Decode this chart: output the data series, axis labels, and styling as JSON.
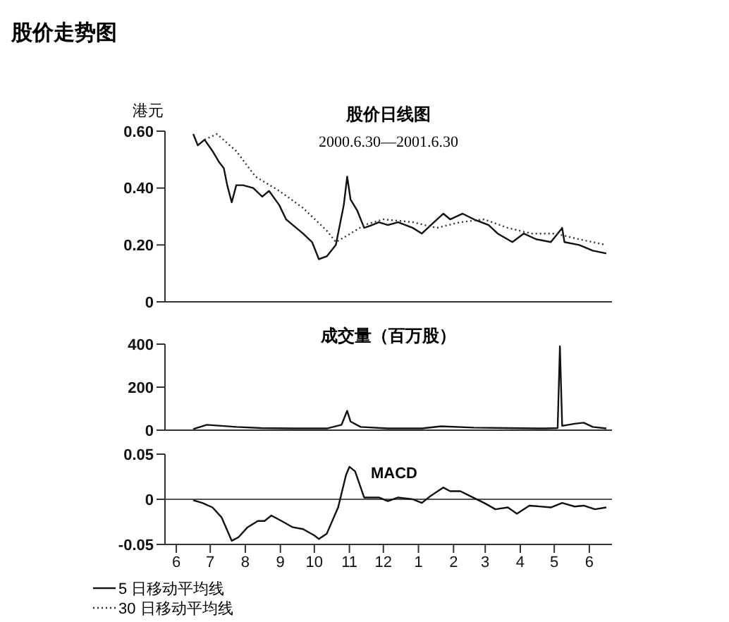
{
  "chart_data": [
    {
      "type": "line",
      "title": "股价日线图",
      "subtitle": "2000.6.30—2001.6.30",
      "ylabel": "港元",
      "annotations": [
        "股价走势图"
      ],
      "xlim": [
        "2000-06-05",
        "2001-07-05"
      ],
      "ylim": [
        0,
        0.6
      ],
      "yticks": [
        {
          "value": 0,
          "label": "0"
        },
        {
          "value": 0.2,
          "label": "0.20"
        },
        {
          "value": 0.4,
          "label": "0.40"
        },
        {
          "value": 0.6,
          "label": "0.60"
        }
      ],
      "tick_labels": "y",
      "legend": "bottom left",
      "series": [
        {
          "name": "5 日移动平均线",
          "color": "#111111",
          "line_style": "solid",
          "x": [
            "2000-06-30",
            "2000-07-04",
            "2000-07-10",
            "2000-07-17",
            "2000-07-23",
            "2000-07-27",
            "2000-07-30",
            "2000-08-03",
            "2000-08-07",
            "2000-08-13",
            "2000-08-22",
            "2000-08-30",
            "2000-09-05",
            "2000-09-14",
            "2000-09-20",
            "2000-09-26",
            "2000-10-05",
            "2000-10-13",
            "2000-10-19",
            "2000-10-26",
            "2000-11-03",
            "2000-11-10",
            "2000-11-13",
            "2000-11-16",
            "2000-11-22",
            "2000-11-28",
            "2000-12-05",
            "2000-12-11",
            "2000-12-19",
            "2000-12-28",
            "2001-01-10",
            "2001-01-18",
            "2001-01-26",
            "2001-02-06",
            "2001-02-12",
            "2001-02-23",
            "2001-03-05",
            "2001-03-18",
            "2001-03-26",
            "2001-04-08",
            "2001-04-18",
            "2001-04-29",
            "2001-05-12",
            "2001-05-22",
            "2001-05-24",
            "2001-06-06",
            "2001-06-18",
            "2001-06-30"
          ],
          "values": [
            0.59,
            0.55,
            0.57,
            0.53,
            0.49,
            0.47,
            0.41,
            0.35,
            0.41,
            0.41,
            0.4,
            0.37,
            0.39,
            0.34,
            0.29,
            0.27,
            0.24,
            0.21,
            0.15,
            0.16,
            0.2,
            0.34,
            0.44,
            0.36,
            0.32,
            0.26,
            0.27,
            0.28,
            0.27,
            0.28,
            0.26,
            0.24,
            0.27,
            0.31,
            0.29,
            0.31,
            0.29,
            0.27,
            0.24,
            0.21,
            0.24,
            0.22,
            0.21,
            0.26,
            0.21,
            0.2,
            0.18,
            0.17
          ]
        },
        {
          "name": "30 日移动平均线",
          "color": "#333333",
          "line_style": "dotted",
          "x": [
            "2000-07-10",
            "2000-07-21",
            "2000-08-07",
            "2000-08-24",
            "2000-09-14",
            "2000-10-05",
            "2000-10-26",
            "2000-11-03",
            "2000-11-16",
            "2000-11-28",
            "2000-12-15",
            "2001-01-10",
            "2001-01-31",
            "2001-02-21",
            "2001-03-14",
            "2001-04-04",
            "2001-04-25",
            "2001-05-16",
            "2001-06-06",
            "2001-06-30"
          ],
          "values": [
            0.57,
            0.59,
            0.53,
            0.44,
            0.39,
            0.33,
            0.25,
            0.21,
            0.24,
            0.27,
            0.29,
            0.28,
            0.26,
            0.28,
            0.29,
            0.26,
            0.24,
            0.24,
            0.22,
            0.2
          ]
        }
      ]
    },
    {
      "type": "line",
      "title": "成交量（百万股）",
      "xlim": [
        "2000-06-05",
        "2001-07-05"
      ],
      "ylim": [
        0,
        400
      ],
      "yticks": [
        0,
        200,
        400
      ],
      "tick_labels": "y",
      "series": [
        {
          "color": "#111111",
          "x": [
            "2000-06-30",
            "2000-07-12",
            "2000-07-25",
            "2000-08-07",
            "2000-08-29",
            "2000-09-26",
            "2000-10-26",
            "2000-11-08",
            "2000-11-13",
            "2000-11-16",
            "2000-11-25",
            "2000-12-19",
            "2001-01-18",
            "2001-02-04",
            "2001-03-05",
            "2001-04-04",
            "2001-05-07",
            "2001-05-18",
            "2001-05-20",
            "2001-05-22",
            "2001-06-02",
            "2001-06-10",
            "2001-06-18",
            "2001-06-30"
          ],
          "values": [
            5,
            25,
            20,
            15,
            10,
            8,
            8,
            25,
            90,
            40,
            15,
            8,
            8,
            18,
            12,
            10,
            8,
            10,
            390,
            20,
            30,
            35,
            15,
            8
          ]
        }
      ]
    },
    {
      "type": "line",
      "annotations": [
        "MACD"
      ],
      "xlim": [
        "2000-06-05",
        "2001-07-05"
      ],
      "ylim": [
        -0.05,
        0.05
      ],
      "yticks": [
        -0.05,
        0,
        0.05
      ],
      "xticks": [
        {
          "value": "2000-06-15",
          "label": "6"
        },
        {
          "value": "2000-07-15",
          "label": "7"
        },
        {
          "value": "2000-08-15",
          "label": "8"
        },
        {
          "value": "2000-09-15",
          "label": "9"
        },
        {
          "value": "2000-10-15",
          "label": "10"
        },
        {
          "value": "2000-11-15",
          "label": "11"
        },
        {
          "value": "2000-12-15",
          "label": "12"
        },
        {
          "value": "2001-01-15",
          "label": "1"
        },
        {
          "value": "2001-02-15",
          "label": "2"
        },
        {
          "value": "2001-03-15",
          "label": "3"
        },
        {
          "value": "2001-04-15",
          "label": "4"
        },
        {
          "value": "2001-05-15",
          "label": "5"
        },
        {
          "value": "2001-06-15",
          "label": "6"
        }
      ],
      "ref_lines": [
        {
          "axis": "y",
          "value": 0,
          "color": "#555555"
        }
      ],
      "series": [
        {
          "color": "#111111",
          "x": [
            "2000-06-30",
            "2000-07-08",
            "2000-07-17",
            "2000-07-25",
            "2000-08-03",
            "2000-08-09",
            "2000-08-17",
            "2000-08-26",
            "2000-09-01",
            "2000-09-07",
            "2000-09-16",
            "2000-09-26",
            "2000-10-05",
            "2000-10-15",
            "2000-10-19",
            "2000-10-26",
            "2000-11-05",
            "2000-11-12",
            "2000-11-15",
            "2000-11-20",
            "2000-11-28",
            "2000-12-11",
            "2000-12-19",
            "2000-12-28",
            "2001-01-10",
            "2001-01-18",
            "2001-01-26",
            "2001-02-06",
            "2001-02-12",
            "2001-02-21",
            "2001-03-01",
            "2001-03-14",
            "2001-03-24",
            "2001-04-04",
            "2001-04-12",
            "2001-04-23",
            "2001-05-12",
            "2001-05-22",
            "2001-06-02",
            "2001-06-10",
            "2001-06-20",
            "2001-06-30"
          ],
          "values": [
            -0.001,
            -0.004,
            -0.009,
            -0.02,
            -0.046,
            -0.042,
            -0.031,
            -0.024,
            -0.024,
            -0.018,
            -0.024,
            -0.031,
            -0.033,
            -0.04,
            -0.044,
            -0.038,
            -0.009,
            0.027,
            0.036,
            0.031,
            0.002,
            0.002,
            -0.002,
            0.002,
            0,
            -0.004,
            0.004,
            0.013,
            0.009,
            0.009,
            0.004,
            -0.004,
            -0.011,
            -0.009,
            -0.016,
            -0.007,
            -0.009,
            -0.004,
            -0.008,
            -0.007,
            -0.011,
            -0.009
          ]
        }
      ]
    }
  ]
}
